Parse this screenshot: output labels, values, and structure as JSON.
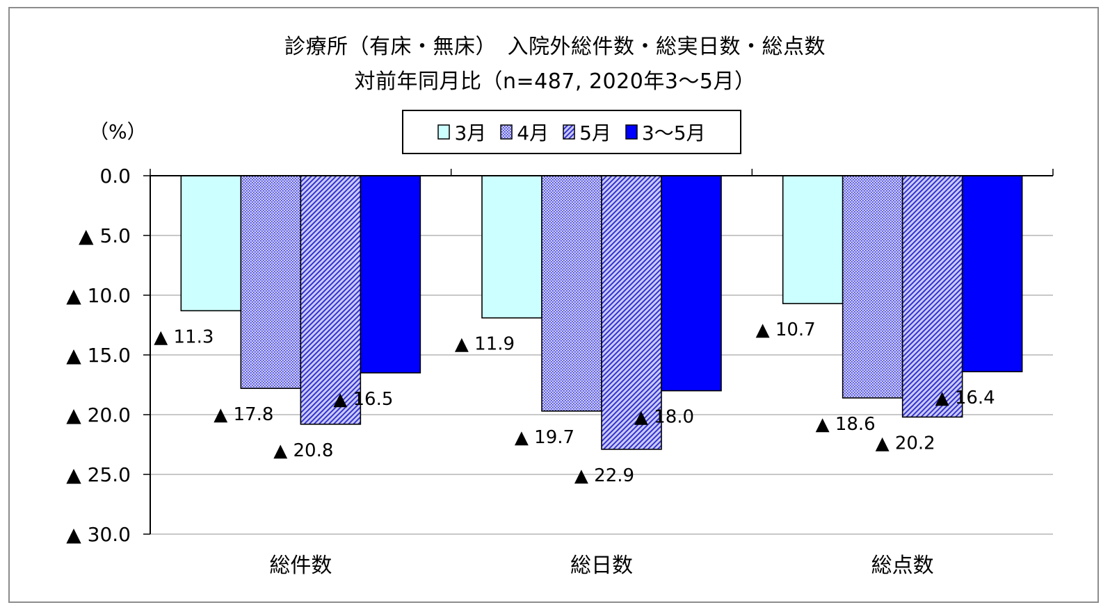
{
  "chart_data": {
    "type": "bar",
    "title": "診療所（有床・無床）　入院外総件数・総実日数・総点数",
    "subtitle": "対前年同月比（n=487, 2020年3〜5月）",
    "ylabel": "（%）",
    "categories": [
      "総件数",
      "総日数",
      "総点数"
    ],
    "series": [
      {
        "name": "3月",
        "values": [
          -11.3,
          -11.9,
          -10.7
        ],
        "color": "#ccffff",
        "pattern": "solid"
      },
      {
        "name": "4月",
        "values": [
          -17.8,
          -19.7,
          -18.6
        ],
        "color": "#ccccff",
        "pattern": "dots"
      },
      {
        "name": "5月",
        "values": [
          -20.8,
          -22.9,
          -20.2
        ],
        "color": "#ccccff",
        "pattern": "diagonal"
      },
      {
        "name": "3〜5月",
        "values": [
          -16.5,
          -18.0,
          -16.4
        ],
        "color": "#0000ff",
        "pattern": "solid"
      }
    ],
    "data_labels": [
      [
        "▲ 11.3",
        "▲ 11.9",
        "▲ 10.7"
      ],
      [
        "▲ 17.8",
        "▲ 19.7",
        "▲ 18.6"
      ],
      [
        "▲ 20.8",
        "▲ 22.9",
        "▲ 20.2"
      ],
      [
        "▲ 16.5",
        "▲ 18.0",
        "▲ 16.4"
      ]
    ],
    "yticks": [
      0,
      5,
      10,
      15,
      20,
      25,
      30
    ],
    "ytick_labels": [
      "0.0",
      "▲ 5.0",
      "▲ 10.0",
      "▲ 15.0",
      "▲ 20.0",
      "▲ 25.0",
      "▲ 30.0"
    ],
    "ylim": [
      -30,
      0
    ],
    "y_inverted": true,
    "grid": true,
    "legend_position": "top-center"
  },
  "colors": {
    "gridline": "#a6a6a6",
    "axis": "#000000",
    "bar_border": "#000000",
    "pattern_stroke": "#3333cc"
  }
}
